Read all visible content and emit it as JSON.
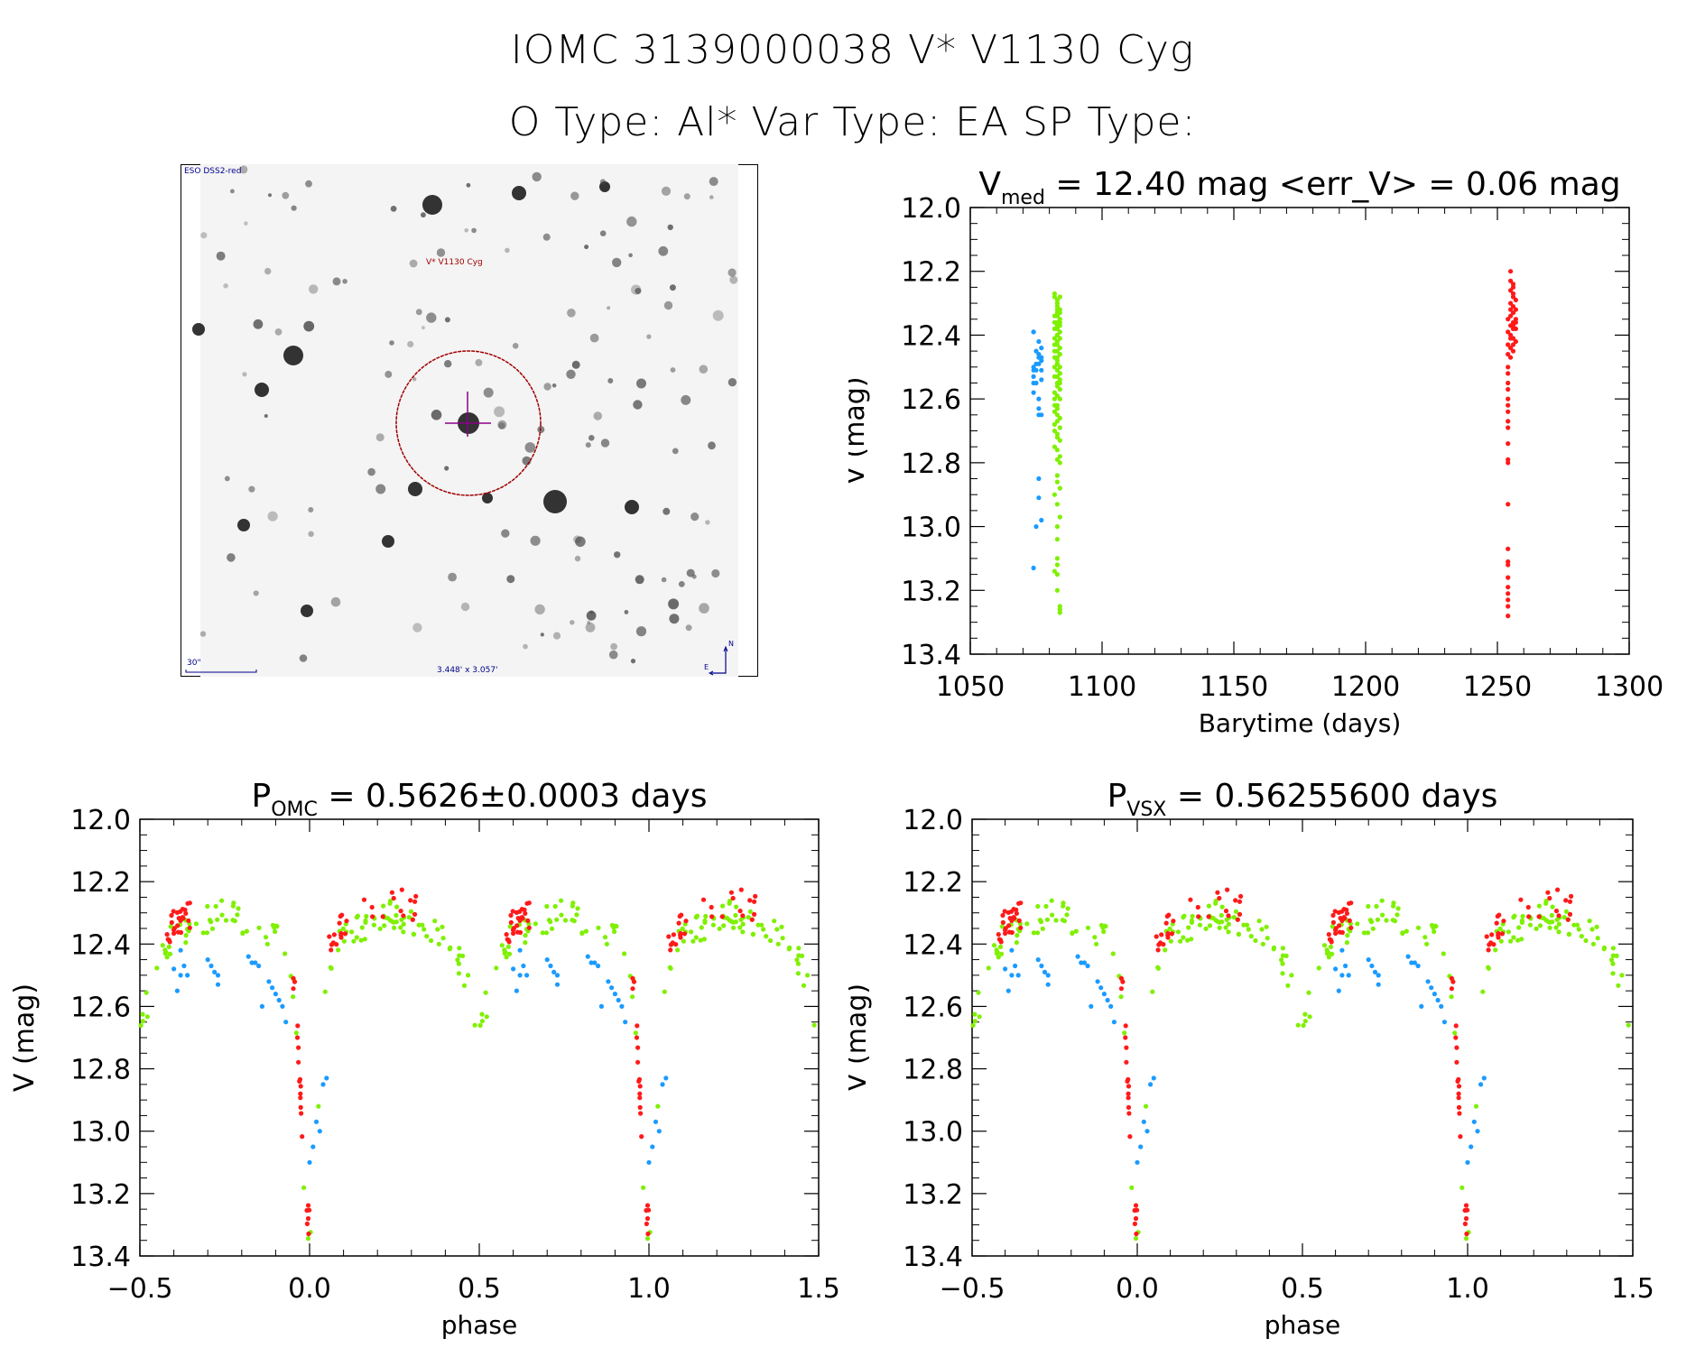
{
  "header": {
    "title_line1": "IOMC 3139000038    V* V1130 Cyg",
    "title_line2": "O Type: Al*  Var Type: EA  SP Type:"
  },
  "finder_chart": {
    "survey_label": "ESO DSS2-red",
    "target_label": "V* V1130 Cyg",
    "scale_label": "30\"",
    "fov_label": "3.448' x 3.057'",
    "north_label": "N",
    "east_label": "E"
  },
  "colors": {
    "series_blue": "#1a9bff",
    "series_green": "#7ff000",
    "series_red": "#ff1a1a",
    "finder_text": "#00008b",
    "circle": "#a00000",
    "crosshair": "#8b008b"
  },
  "chart_data": [
    {
      "id": "light_curve",
      "type": "scatter",
      "title_main": "V",
      "title_sub": "med",
      "title_rest": " = 12.40 mag <err_V> = 0.06 mag",
      "xlabel": "Barytime (days)",
      "ylabel": "V (mag)",
      "xlim": [
        1050,
        1300
      ],
      "ylim": [
        13.4,
        12.0
      ],
      "y_inverted": true,
      "x_ticks": [
        1050,
        1100,
        1150,
        1200,
        1250,
        1300
      ],
      "x_tick_labels": [
        "1050",
        "1100",
        "1150",
        "1200",
        "1250",
        "1300"
      ],
      "y_ticks": [
        12.0,
        12.2,
        12.4,
        12.6,
        12.8,
        13.0,
        13.2,
        13.4
      ],
      "y_tick_labels": [
        "12.0",
        "12.2",
        "12.4",
        "12.6",
        "12.8",
        "13.0",
        "13.2",
        "13.4"
      ],
      "grid": false,
      "series": [
        {
          "name": "blue",
          "color": "#1a9bff",
          "x": [
            1074,
            1074,
            1075,
            1076,
            1076,
            1074,
            1075,
            1077,
            1077,
            1077,
            1076,
            1074,
            1074,
            1074,
            1075,
            1074,
            1077,
            1077,
            1076,
            1076,
            1077,
            1076,
            1075,
            1076,
            1076,
            1077,
            1075,
            1074,
            1076
          ],
          "y": [
            12.39,
            12.39,
            12.45,
            12.46,
            12.47,
            12.5,
            12.49,
            12.44,
            12.47,
            12.48,
            12.49,
            12.51,
            12.53,
            12.55,
            12.55,
            12.58,
            12.51,
            12.54,
            12.6,
            12.63,
            12.65,
            12.65,
            12.51,
            12.85,
            12.91,
            12.98,
            13.0,
            13.13,
            12.42
          ]
        },
        {
          "name": "green",
          "color": "#7ff000",
          "x": [
            1082,
            1082,
            1083,
            1083,
            1083,
            1083,
            1084,
            1084,
            1082,
            1083,
            1084,
            1083,
            1082,
            1083,
            1084,
            1083,
            1082,
            1084,
            1083,
            1083,
            1082,
            1084,
            1083,
            1082,
            1083,
            1084,
            1082,
            1083,
            1084,
            1083,
            1082,
            1083,
            1083,
            1084,
            1082,
            1083,
            1084,
            1083,
            1082,
            1084,
            1083,
            1083,
            1084,
            1082,
            1083,
            1082,
            1084,
            1083,
            1083,
            1082,
            1083,
            1084,
            1083,
            1082,
            1084,
            1082,
            1083,
            1083,
            1084,
            1082,
            1083,
            1084,
            1083,
            1082,
            1084,
            1083,
            1083,
            1084,
            1082,
            1083,
            1084,
            1083,
            1083,
            1083,
            1083,
            1082,
            1083,
            1083,
            1084,
            1084,
            1084,
            1083,
            1083,
            1084,
            1084,
            1084,
            1083,
            1084
          ],
          "y": [
            12.27,
            12.28,
            12.29,
            12.3,
            12.31,
            12.32,
            12.32,
            12.33,
            12.34,
            12.34,
            12.35,
            12.36,
            12.36,
            12.37,
            12.37,
            12.38,
            12.38,
            12.39,
            12.4,
            12.4,
            12.41,
            12.41,
            12.42,
            12.43,
            12.43,
            12.44,
            12.45,
            12.45,
            12.46,
            12.47,
            12.47,
            12.48,
            12.49,
            12.5,
            12.5,
            12.51,
            12.52,
            12.53,
            12.53,
            12.54,
            12.55,
            12.56,
            12.57,
            12.58,
            12.59,
            12.6,
            12.6,
            12.62,
            12.63,
            12.64,
            12.65,
            12.66,
            12.67,
            12.68,
            12.69,
            12.7,
            12.71,
            12.72,
            12.73,
            12.75,
            12.76,
            12.78,
            12.79,
            12.62,
            12.8,
            12.84,
            12.86,
            12.88,
            12.9,
            12.93,
            12.97,
            13.0,
            13.04,
            13.1,
            13.12,
            13.14,
            13.15,
            13.2,
            13.25,
            13.26,
            13.27,
            12.3,
            12.33,
            12.36,
            12.28,
            12.52,
            12.49,
            12.55
          ]
        },
        {
          "name": "red",
          "color": "#ff1a1a",
          "x": [
            1255,
            1255,
            1256,
            1256,
            1255,
            1256,
            1257,
            1255,
            1256,
            1257,
            1256,
            1255,
            1254,
            1256,
            1257,
            1255,
            1256,
            1254,
            1255,
            1256,
            1257,
            1254,
            1255,
            1256,
            1254,
            1255,
            1254,
            1254,
            1254,
            1254,
            1254,
            1254,
            1254,
            1254,
            1254,
            1254,
            1254,
            1254,
            1254,
            1254,
            1254,
            1254,
            1254,
            1254,
            1254,
            1254,
            1254,
            1254,
            1256,
            1255,
            1257,
            1256,
            1255,
            1256,
            1257
          ],
          "y": [
            12.2,
            12.23,
            12.24,
            12.25,
            12.26,
            12.28,
            12.29,
            12.3,
            12.31,
            12.32,
            12.33,
            12.34,
            12.35,
            12.36,
            12.36,
            12.37,
            12.38,
            12.39,
            12.4,
            12.41,
            12.42,
            12.43,
            12.44,
            12.45,
            12.46,
            12.47,
            12.5,
            12.52,
            12.55,
            12.57,
            12.6,
            12.62,
            12.64,
            12.67,
            12.69,
            12.74,
            12.79,
            12.8,
            12.93,
            13.07,
            13.11,
            13.12,
            13.16,
            13.19,
            13.21,
            13.23,
            13.25,
            13.28,
            12.27,
            12.32,
            12.35,
            12.37,
            12.41,
            12.43,
            12.38
          ]
        }
      ]
    },
    {
      "id": "phase_omc",
      "type": "scatter",
      "title_main": "P",
      "title_sub": "OMC",
      "title_rest": " = 0.5626±0.0003 days",
      "xlabel": "phase",
      "ylabel": "V (mag)",
      "xlim": [
        -0.5,
        1.5
      ],
      "ylim": [
        13.4,
        12.0
      ],
      "y_inverted": true,
      "x_ticks": [
        -0.5,
        0.0,
        0.5,
        1.0,
        1.5
      ],
      "x_tick_labels": [
        "−0.5",
        "0.0",
        "0.5",
        "1.0",
        "1.5"
      ],
      "y_ticks": [
        12.0,
        12.2,
        12.4,
        12.6,
        12.8,
        13.0,
        13.2,
        13.4
      ],
      "y_tick_labels": [
        "12.0",
        "12.2",
        "12.4",
        "12.6",
        "12.8",
        "13.0",
        "13.2",
        "13.4"
      ],
      "grid": false,
      "phase_model": {
        "description": "phase-folded light curve, eclipsing binary (EA) with primary minimum ~13.27 mag at phase 0.0, secondary minimum ~12.58 mag at phase 0.5, maximum ~12.33 mag near phases 0.25 and 0.75",
        "primary_min_phase": 0.0,
        "primary_min_mag": 13.27,
        "secondary_min_phase": 0.5,
        "secondary_min_mag": 12.58,
        "max_mag": 12.33
      },
      "series": [
        {
          "name": "blue",
          "color": "#1a9bff",
          "phase": [
            0.6,
            0.62,
            0.63,
            0.64,
            0.7,
            0.71,
            0.72,
            0.73,
            0.82,
            0.83,
            0.84,
            0.85,
            0.88,
            0.89,
            0.9,
            0.91,
            0.92,
            0.93,
            0.02,
            0.03,
            0.04,
            0.05,
            0.01,
            0.0,
            0.61,
            0.73,
            0.62,
            0.86
          ],
          "mag": [
            12.48,
            12.5,
            12.47,
            12.5,
            12.45,
            12.47,
            12.49,
            12.5,
            12.44,
            12.46,
            12.46,
            12.47,
            12.52,
            12.54,
            12.56,
            12.58,
            12.6,
            12.65,
            12.97,
            13.0,
            12.85,
            12.83,
            13.05,
            13.1,
            12.55,
            12.53,
            12.42,
            12.6
          ]
        },
        {
          "name": "green",
          "color": "#7ff000",
          "phase": [],
          "mag": []
        },
        {
          "name": "red",
          "color": "#ff1a1a",
          "phase": [],
          "mag": []
        }
      ]
    },
    {
      "id": "phase_vsx",
      "type": "scatter",
      "title_main": "P",
      "title_sub": "VSX",
      "title_rest": " = 0.56255600 days",
      "xlabel": "phase",
      "ylabel": "V (mag)",
      "xlim": [
        -0.5,
        1.5
      ],
      "ylim": [
        13.4,
        12.0
      ],
      "y_inverted": true,
      "x_ticks": [
        -0.5,
        0.0,
        0.5,
        1.0,
        1.5
      ],
      "x_tick_labels": [
        "−0.5",
        "0.0",
        "0.5",
        "1.0",
        "1.5"
      ],
      "y_ticks": [
        12.0,
        12.2,
        12.4,
        12.6,
        12.8,
        13.0,
        13.2,
        13.4
      ],
      "y_tick_labels": [
        "12.0",
        "12.2",
        "12.4",
        "12.6",
        "12.8",
        "13.0",
        "13.2",
        "13.4"
      ],
      "grid": false,
      "same_points_as": "phase_omc"
    }
  ]
}
